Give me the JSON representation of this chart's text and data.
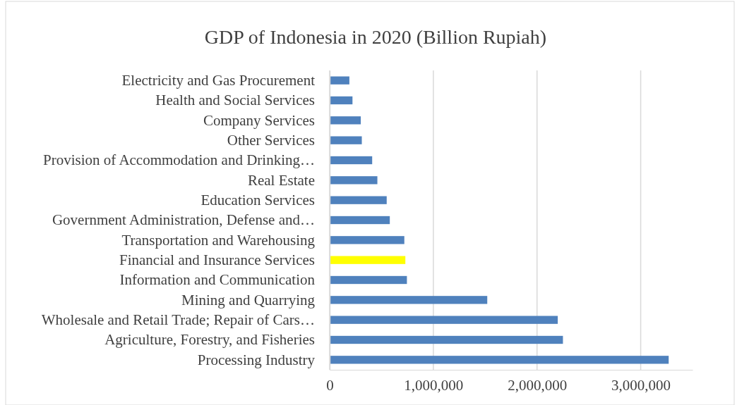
{
  "chart_data": {
    "type": "bar",
    "orientation": "horizontal",
    "title": "GDP of Indonesia in 2020 (Billion Rupiah)",
    "categories": [
      "Electricity and Gas Procurement",
      "Health and Social Services",
      "Company Services",
      "Other Services",
      "Provision of Accommodation and Drinking…",
      "Real Estate",
      "Education Services",
      "Government Administration, Defense and…",
      "Transportation and Warehousing",
      "Financial and Insurance Services",
      "Information and Communication",
      "Mining and Quarrying",
      "Wholesale and Retail Trade; Repair of Cars…",
      "Agriculture, Forestry, and Fisheries",
      "Processing Industry"
    ],
    "values": [
      190000,
      220000,
      300000,
      310000,
      410000,
      460000,
      550000,
      580000,
      720000,
      730000,
      745000,
      1520000,
      2200000,
      2250000,
      3270000
    ],
    "colors": [
      "#4f81bd",
      "#4f81bd",
      "#4f81bd",
      "#4f81bd",
      "#4f81bd",
      "#4f81bd",
      "#4f81bd",
      "#4f81bd",
      "#4f81bd",
      "#ffff00",
      "#4f81bd",
      "#4f81bd",
      "#4f81bd",
      "#4f81bd",
      "#4f81bd"
    ],
    "xlim": [
      0,
      3500000
    ],
    "xticks": [
      0,
      {
        "value": 1000000,
        "label": "1,000,000"
      },
      {
        "value": 2000000,
        "label": "2,000,000"
      },
      {
        "value": 3000000,
        "label": "3,000,000"
      }
    ],
    "grid": "x"
  }
}
